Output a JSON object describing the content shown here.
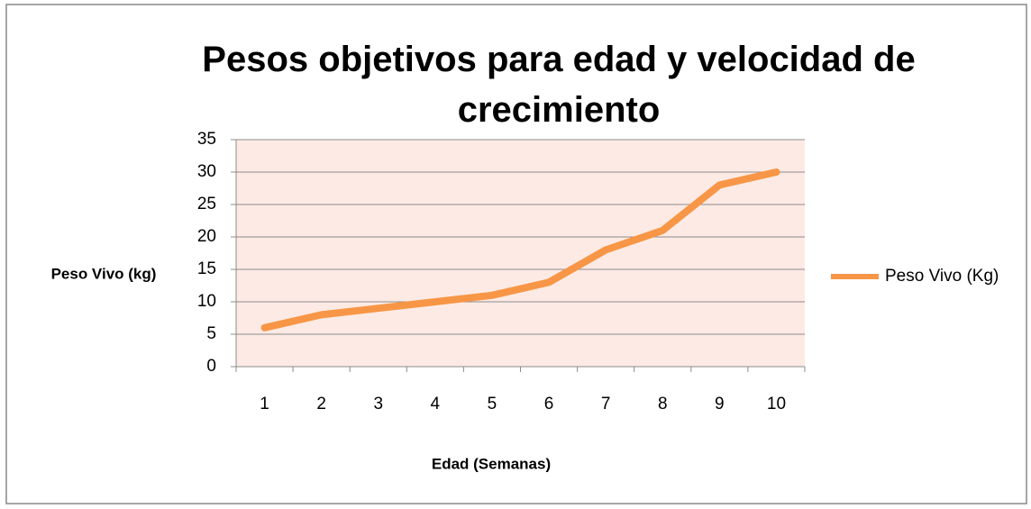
{
  "chart_data": {
    "type": "line",
    "title": "Pesos objetivos para edad y velocidad de crecimiento",
    "x_label": "Edad (Semanas)",
    "y_label": "Peso Vivo (kg)",
    "categories": [
      "1",
      "2",
      "3",
      "4",
      "5",
      "6",
      "7",
      "8",
      "9",
      "10"
    ],
    "series": [
      {
        "name": "Peso Vivo (Kg)",
        "color": "#f79646",
        "values": [
          6,
          8,
          9,
          10,
          11,
          13,
          18,
          21,
          28,
          30
        ]
      }
    ],
    "ylim": [
      0,
      35
    ],
    "yticks": [
      0,
      5,
      10,
      15,
      20,
      25,
      30,
      35
    ],
    "grid": true,
    "legend": "right"
  }
}
